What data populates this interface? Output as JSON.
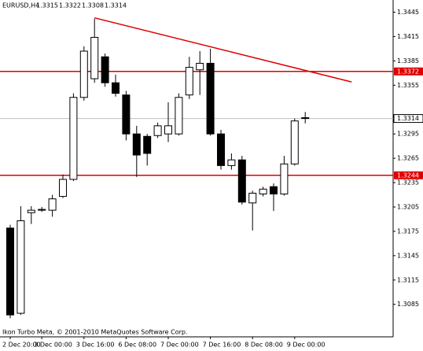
{
  "chart_data": {
    "type": "candlestick",
    "title": "EURUSD,H4",
    "last_ohlc": [
      1.3315,
      1.3322,
      1.3308,
      1.3314
    ],
    "footer": "Ikon Turbo Meta, © 2001-2010 MetaQuotes Software Corp.",
    "categories": [
      "2 Dec 20:00",
      null,
      null,
      "3 Dec 00:00",
      null,
      null,
      null,
      "3 Dec 16:00",
      null,
      null,
      null,
      "6 Dec 08:00",
      null,
      null,
      null,
      "7 Dec 00:00",
      null,
      null,
      null,
      "7 Dec 16:00",
      null,
      null,
      null,
      "8 Dec 08:00",
      null,
      null,
      null,
      "9 Dec 00:00",
      null
    ],
    "open": [
      1.3179,
      1.3074,
      1.3198,
      1.3201,
      1.3201,
      1.3218,
      1.3239,
      1.334,
      1.3363,
      1.339,
      1.3358,
      1.3343,
      1.3295,
      1.3292,
      1.3293,
      1.3295,
      1.3295,
      1.3343,
      1.3374,
      1.3382,
      1.3295,
      1.3256,
      1.3263,
      1.321,
      1.3221,
      1.323,
      1.3221,
      1.3258,
      1.3315
    ],
    "high": [
      1.3183,
      1.3206,
      1.3206,
      1.3205,
      1.322,
      1.3245,
      1.3345,
      1.3403,
      1.3437,
      1.3394,
      1.3368,
      1.3348,
      1.3305,
      1.3295,
      1.3309,
      1.3334,
      1.3345,
      1.339,
      1.3397,
      1.34,
      1.33,
      1.3271,
      1.3268,
      1.3225,
      1.323,
      1.3234,
      1.3268,
      1.3314,
      1.3322
    ],
    "low": [
      1.3068,
      1.3072,
      1.3184,
      1.3199,
      1.3193,
      1.3216,
      1.3237,
      1.3336,
      1.3358,
      1.3353,
      1.3341,
      1.3287,
      1.3242,
      1.3256,
      1.329,
      1.3285,
      1.3293,
      1.3338,
      1.3343,
      1.3293,
      1.3251,
      1.3251,
      1.3208,
      1.3176,
      1.3218,
      1.32,
      1.3219,
      1.3256,
      1.3308
    ],
    "close": [
      1.3072,
      1.3188,
      1.3201,
      1.3202,
      1.3215,
      1.3239,
      1.334,
      1.3397,
      1.3414,
      1.3358,
      1.3345,
      1.3295,
      1.3269,
      1.3271,
      1.3305,
      1.3305,
      1.334,
      1.3377,
      1.3382,
      1.3295,
      1.3256,
      1.3263,
      1.3211,
      1.3222,
      1.3227,
      1.3221,
      1.3258,
      1.3311,
      1.3314
    ],
    "ylim": [
      1.3045,
      1.346
    ],
    "yticks": [
      1.3445,
      1.3415,
      1.3385,
      1.3355,
      1.3295,
      1.3265,
      1.3235,
      1.3205,
      1.3175,
      1.3145,
      1.3115,
      1.3085
    ],
    "hlines": [
      {
        "value": 1.3372,
        "color": "#e00000"
      },
      {
        "value": 1.3244,
        "color": "#e00000"
      }
    ],
    "current_price": 1.3314,
    "trendline": {
      "color": "#e00000",
      "start": [
        8,
        1.3438
      ],
      "end": [
        32.4,
        1.3359
      ]
    }
  }
}
